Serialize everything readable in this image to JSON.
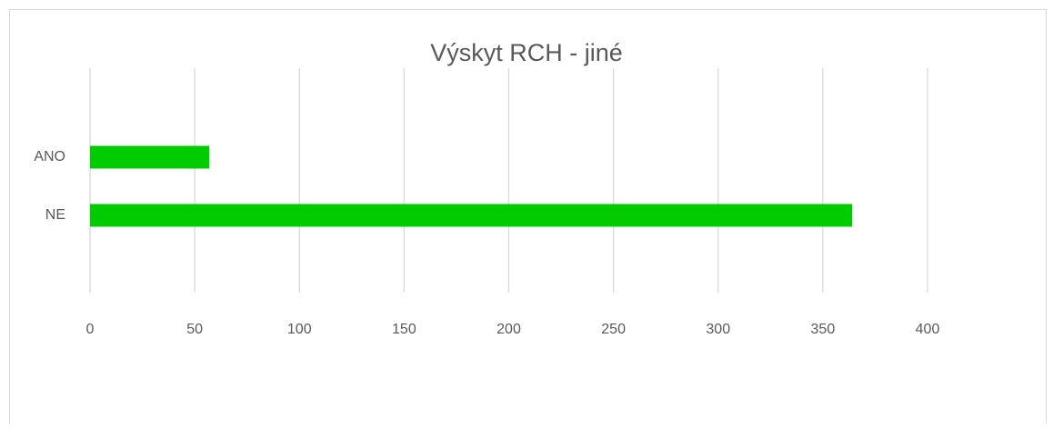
{
  "chart_data": {
    "type": "bar",
    "orientation": "horizontal",
    "title": "Výskyt RCH - jiné",
    "categories": [
      "ANO",
      "NE"
    ],
    "values": [
      57,
      364
    ],
    "color": "#00cc00",
    "xlim": [
      0,
      400
    ],
    "xticks": [
      0,
      50,
      100,
      150,
      200,
      250,
      300,
      350,
      400
    ],
    "grid": true
  }
}
